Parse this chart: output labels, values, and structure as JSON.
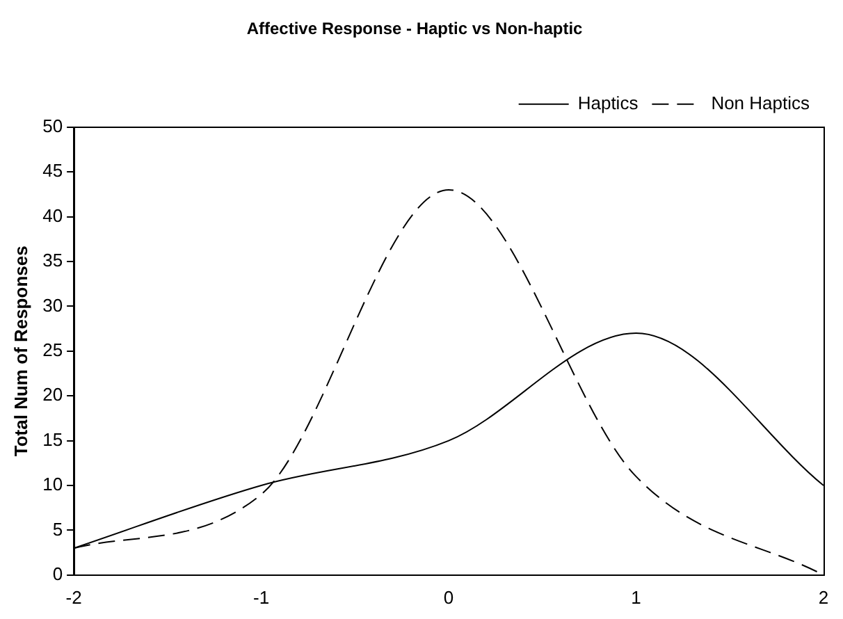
{
  "chart_data": {
    "type": "line",
    "title": "Affective Response - Haptic vs Non-haptic",
    "ylabel": "Total Num of Responses",
    "x": [
      -2,
      -1,
      0,
      1,
      2
    ],
    "series": [
      {
        "name": "Haptics",
        "color": "#000000",
        "line_style": "solid",
        "values": [
          3,
          10,
          15,
          27,
          10
        ]
      },
      {
        "name": "Non Haptics",
        "color": "#000000",
        "line_style": "dashed",
        "values": [
          3,
          9,
          43,
          11,
          0
        ]
      }
    ],
    "xlim": [
      -2,
      2
    ],
    "xticks": [
      -2,
      -1,
      0,
      1,
      2
    ],
    "ylim": [
      0,
      50
    ],
    "yticks": [
      0,
      5,
      10,
      15,
      20,
      25,
      30,
      35,
      40,
      45,
      50
    ],
    "grid": false,
    "legend": "top right",
    "marker": "none"
  }
}
